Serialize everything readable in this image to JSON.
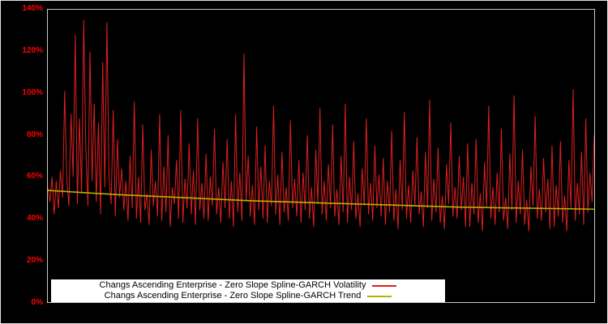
{
  "chart_data": {
    "type": "line",
    "title": "",
    "xlabel": "",
    "ylabel": "",
    "ylim": [
      0,
      140
    ],
    "ytick_step": 20,
    "ytick_labels": [
      "0%",
      "20%",
      "40%",
      "60%",
      "80%",
      "100%",
      "120%",
      "140%"
    ],
    "grid": false,
    "background_color": "#000000",
    "axis_label_color": "#ff0000",
    "legend_position": "bottom-center",
    "series": [
      {
        "name": "Changs Ascending Enterprise - Zero Slope Spline-GARCH Volatility",
        "color": "#dd1f1f",
        "values": [
          55,
          48,
          60,
          42,
          58,
          45,
          63,
          50,
          101,
          58,
          46,
          90,
          60,
          128,
          47,
          88,
          52,
          135,
          75,
          46,
          120,
          58,
          95,
          48,
          86,
          42,
          115,
          55,
          134,
          60,
          47,
          92,
          41,
          78,
          50,
          64,
          44,
          58,
          39,
          70,
          45,
          96,
          40,
          60,
          38,
          85,
          44,
          52,
          37,
          73,
          46,
          58,
          41,
          90,
          39,
          65,
          43,
          80,
          36,
          55,
          47,
          68,
          40,
          92,
          38,
          59,
          45,
          76,
          42,
          63,
          37,
          88,
          44,
          57,
          40,
          71,
          39,
          60,
          46,
          83,
          42,
          55,
          38,
          67,
          45,
          78,
          40,
          58,
          36,
          90,
          43,
          62,
          39,
          119,
          48,
          70,
          41,
          56,
          37,
          84,
          44,
          65,
          40,
          75,
          38,
          58,
          46,
          94,
          42,
          61,
          37,
          72,
          43,
          55,
          39,
          87,
          45,
          59,
          41,
          68,
          38,
          62,
          44,
          80,
          40,
          55,
          36,
          73,
          47,
          93,
          42,
          58,
          39,
          66,
          45,
          85,
          41,
          54,
          37,
          70,
          43,
          95,
          38,
          60,
          44,
          77,
          40,
          52,
          36,
          64,
          46,
          88,
          42,
          57,
          39,
          75,
          45,
          61,
          41,
          69,
          37,
          58,
          43,
          82,
          39,
          54,
          35,
          68,
          44,
          91,
          40,
          56,
          38,
          63,
          46,
          79,
          42,
          53,
          36,
          72,
          45,
          97,
          39,
          59,
          43,
          74,
          38,
          51,
          35,
          66,
          47,
          86,
          41,
          55,
          40,
          70,
          44,
          60,
          36,
          76,
          36,
          57,
          42,
          78,
          38,
          52,
          34,
          67,
          45,
          94,
          40,
          55,
          37,
          62,
          43,
          83,
          39,
          50,
          35,
          71,
          44,
          99,
          38,
          58,
          42,
          73,
          37,
          49,
          34,
          65,
          46,
          89,
          40,
          54,
          39,
          69,
          43,
          59,
          35,
          75,
          36,
          56,
          41,
          77,
          38,
          51,
          34,
          68,
          45,
          102,
          39,
          57,
          42,
          72,
          37,
          88,
          43,
          62,
          48,
          80
        ]
      },
      {
        "name": "Changs Ascending Enterprise - Zero Slope Spline-GARCH Trend",
        "color": "#b5b200",
        "values": [
          53.5,
          51.5,
          50,
          48.5,
          47.5,
          46.5,
          45.5,
          45,
          44.5
        ]
      }
    ]
  }
}
